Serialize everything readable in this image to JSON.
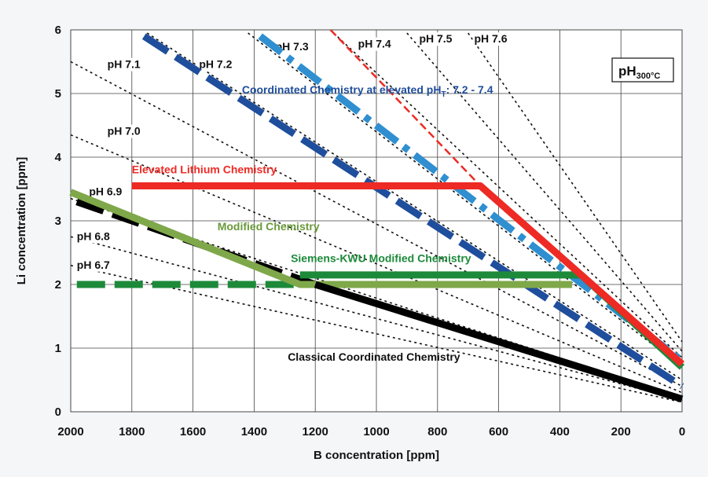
{
  "chart_data": {
    "type": "line",
    "xlabel": "B concentration [ppm]",
    "ylabel": "Li concentration [ppm]",
    "xlim": [
      2000,
      0
    ],
    "ylim": [
      0,
      6
    ],
    "x_ticks": [
      "2000",
      "1800",
      "1600",
      "1400",
      "1200",
      "1000",
      "800",
      "600",
      "400",
      "200",
      "0"
    ],
    "y_ticks": [
      "0",
      "1",
      "2",
      "3",
      "4",
      "5",
      "6"
    ],
    "grid": true,
    "box_label": {
      "main": "pH",
      "sub": "300°C"
    },
    "ph_lines": [
      {
        "label": "pH 6.7",
        "points": [
          [
            2000,
            2.3
          ],
          [
            0,
            0.15
          ]
        ],
        "label_at": [
          1980,
          2.25
        ]
      },
      {
        "label": "pH 6.8",
        "points": [
          [
            2000,
            2.75
          ],
          [
            0,
            0.18
          ]
        ],
        "label_at": [
          1980,
          2.7
        ]
      },
      {
        "label": "pH 6.9",
        "points": [
          [
            2000,
            3.35
          ],
          [
            0,
            0.22
          ]
        ],
        "label_at": [
          1940,
          3.4
        ]
      },
      {
        "label": "pH 7.0",
        "points": [
          [
            2000,
            4.35
          ],
          [
            0,
            0.3
          ]
        ],
        "label_at": [
          1880,
          4.35
        ]
      },
      {
        "label": "pH 7.1",
        "points": [
          [
            2000,
            5.5
          ],
          [
            0,
            0.4
          ]
        ],
        "label_at": [
          1880,
          5.4
        ]
      },
      {
        "label": "pH 7.2",
        "points": [
          [
            1750,
            5.95
          ],
          [
            0,
            0.5
          ]
        ],
        "label_at": [
          1580,
          5.4
        ]
      },
      {
        "label": "pH 7.3",
        "points": [
          [
            1420,
            5.95
          ],
          [
            0,
            0.7
          ]
        ],
        "label_at": [
          1330,
          5.68
        ]
      },
      {
        "label": "pH 7.4",
        "points": [
          [
            1140,
            5.95
          ],
          [
            0,
            0.85
          ]
        ],
        "label_at": [
          1060,
          5.72
        ]
      },
      {
        "label": "pH 7.5",
        "points": [
          [
            900,
            5.95
          ],
          [
            0,
            0.95
          ]
        ],
        "label_at": [
          860,
          5.8
        ]
      },
      {
        "label": "pH 7.6",
        "points": [
          [
            700,
            5.95
          ],
          [
            0,
            1.1
          ]
        ],
        "label_at": [
          680,
          5.8
        ]
      }
    ],
    "series": [
      {
        "name": "Coordinated Chemistry at elevated pHT: 7.2 - 7.4",
        "color": "#1f4e9c",
        "style": "dashed",
        "points": [
          [
            1760,
            5.9
          ],
          [
            0,
            0.4
          ]
        ]
      },
      {
        "name": "Coordinated Chemistry at elevated pHT: 7.2 - 7.4",
        "color": "#2f8fd0",
        "style": "dash-dot",
        "points": [
          [
            1380,
            5.9
          ],
          [
            0,
            0.8
          ]
        ]
      },
      {
        "name": "Elevated Lithium Chemistry",
        "color": "#ee2a24",
        "style": "solid",
        "points": [
          [
            1800,
            3.55
          ],
          [
            660,
            3.55
          ],
          [
            0,
            0.75
          ]
        ]
      },
      {
        "name": "Elevated Lithium Chemistry",
        "color": "#ee2a24",
        "style": "dashed-thin",
        "points": [
          [
            1150,
            6.0
          ],
          [
            660,
            3.55
          ]
        ]
      },
      {
        "name": "Siemens-KWU Modified Chemistry",
        "color": "#1d8a3a",
        "style": "solid",
        "points": [
          [
            1250,
            2.15
          ],
          [
            330,
            2.15
          ],
          [
            0,
            0.7
          ]
        ]
      },
      {
        "name": "Siemens-KWU Modified Chemistry",
        "color": "#1d8a3a",
        "style": "dashed",
        "points": [
          [
            1980,
            2.0
          ],
          [
            1250,
            2.0
          ]
        ]
      },
      {
        "name": "Modified Chemistry",
        "color": "#7fa84a",
        "style": "solid",
        "points": [
          [
            2000,
            3.45
          ],
          [
            1250,
            2.0
          ],
          [
            360,
            2.0
          ]
        ]
      },
      {
        "name": "Classical Coordinated Chemistry",
        "color": "#000000",
        "style": "dashed",
        "points": [
          [
            1980,
            3.3
          ],
          [
            1200,
            2.0
          ]
        ]
      },
      {
        "name": "Classical Coordinated Chemistry",
        "color": "#000000",
        "style": "solid",
        "points": [
          [
            1200,
            2.0
          ],
          [
            0,
            0.2
          ]
        ]
      }
    ],
    "annotations": [
      {
        "text_main": "Coordinated Chemistry at elevated pH",
        "text_sub": "T",
        "text_tail": ": 7.2 - 7.4",
        "color": "#1f4e9c",
        "at": [
          1440,
          5.0
        ]
      },
      {
        "text": "Elevated Lithium Chemistry",
        "color": "#ee2a24",
        "at": [
          1800,
          3.75
        ]
      },
      {
        "text": "Modified Chemistry",
        "color": "#6a9a3a",
        "at": [
          1520,
          2.85
        ]
      },
      {
        "text": "Siemens-KWU Modified Chemistry",
        "color": "#1d8a3a",
        "at": [
          1280,
          2.35
        ]
      },
      {
        "text": "Classical Coordinated Chemistry",
        "color": "#111111",
        "at": [
          1290,
          0.8
        ]
      }
    ]
  }
}
